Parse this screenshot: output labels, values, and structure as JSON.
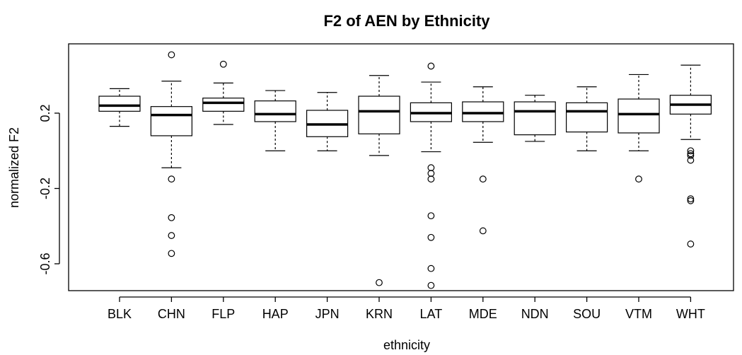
{
  "chart_data": {
    "type": "boxplot",
    "title": "F2 of AEN by Ethnicity",
    "xlabel": "ethnicity",
    "ylabel": "normalized F2",
    "ylim": [
      -0.75,
      0.6
    ],
    "yticks": [
      -0.6,
      -0.2,
      0.2
    ],
    "ytick_labels": [
      "-0.6",
      "-0.2",
      "0.2"
    ],
    "grid": false,
    "categories": [
      "BLK",
      "CHN",
      "FLP",
      "HAP",
      "JPN",
      "KRN",
      "LAT",
      "MDE",
      "NDN",
      "SOU",
      "VTM",
      "WHT"
    ],
    "boxes": [
      {
        "category": "BLK",
        "whisker_low": 0.13,
        "q1": 0.21,
        "median": 0.24,
        "q3": 0.29,
        "whisker_high": 0.33,
        "outliers": []
      },
      {
        "category": "CHN",
        "whisker_low": -0.09,
        "q1": 0.08,
        "median": 0.19,
        "q3": 0.235,
        "whisker_high": 0.37,
        "outliers": [
          -0.15,
          -0.355,
          -0.45,
          -0.545,
          0.51
        ]
      },
      {
        "category": "FLP",
        "whisker_low": 0.14,
        "q1": 0.21,
        "median": 0.255,
        "q3": 0.28,
        "whisker_high": 0.36,
        "outliers": [
          0.46
        ]
      },
      {
        "category": "HAP",
        "whisker_low": 0.0,
        "q1": 0.155,
        "median": 0.195,
        "q3": 0.265,
        "whisker_high": 0.32,
        "outliers": []
      },
      {
        "category": "JPN",
        "whisker_low": 0.0,
        "q1": 0.075,
        "median": 0.14,
        "q3": 0.215,
        "whisker_high": 0.31,
        "outliers": []
      },
      {
        "category": "KRN",
        "whisker_low": -0.025,
        "q1": 0.09,
        "median": 0.21,
        "q3": 0.29,
        "whisker_high": 0.4,
        "outliers": [
          -0.7
        ]
      },
      {
        "category": "LAT",
        "whisker_low": -0.005,
        "q1": 0.155,
        "median": 0.2,
        "q3": 0.255,
        "whisker_high": 0.365,
        "outliers": [
          -0.09,
          -0.12,
          -0.15,
          -0.345,
          -0.46,
          -0.625,
          -0.715,
          0.45
        ]
      },
      {
        "category": "MDE",
        "whisker_low": 0.045,
        "q1": 0.155,
        "median": 0.2,
        "q3": 0.26,
        "whisker_high": 0.34,
        "outliers": [
          -0.15,
          -0.425
        ]
      },
      {
        "category": "NDN",
        "whisker_low": 0.05,
        "q1": 0.085,
        "median": 0.21,
        "q3": 0.26,
        "whisker_high": 0.295,
        "outliers": []
      },
      {
        "category": "SOU",
        "whisker_low": 0.0,
        "q1": 0.1,
        "median": 0.21,
        "q3": 0.255,
        "whisker_high": 0.34,
        "outliers": []
      },
      {
        "category": "VTM",
        "whisker_low": 0.0,
        "q1": 0.095,
        "median": 0.195,
        "q3": 0.275,
        "whisker_high": 0.405,
        "outliers": [
          -0.15
        ]
      },
      {
        "category": "WHT",
        "whisker_low": 0.06,
        "q1": 0.195,
        "median": 0.245,
        "q3": 0.295,
        "whisker_high": 0.455,
        "outliers": [
          -0.495,
          -0.255,
          -0.265,
          -0.05,
          -0.025,
          0.0,
          -0.015
        ]
      }
    ]
  }
}
